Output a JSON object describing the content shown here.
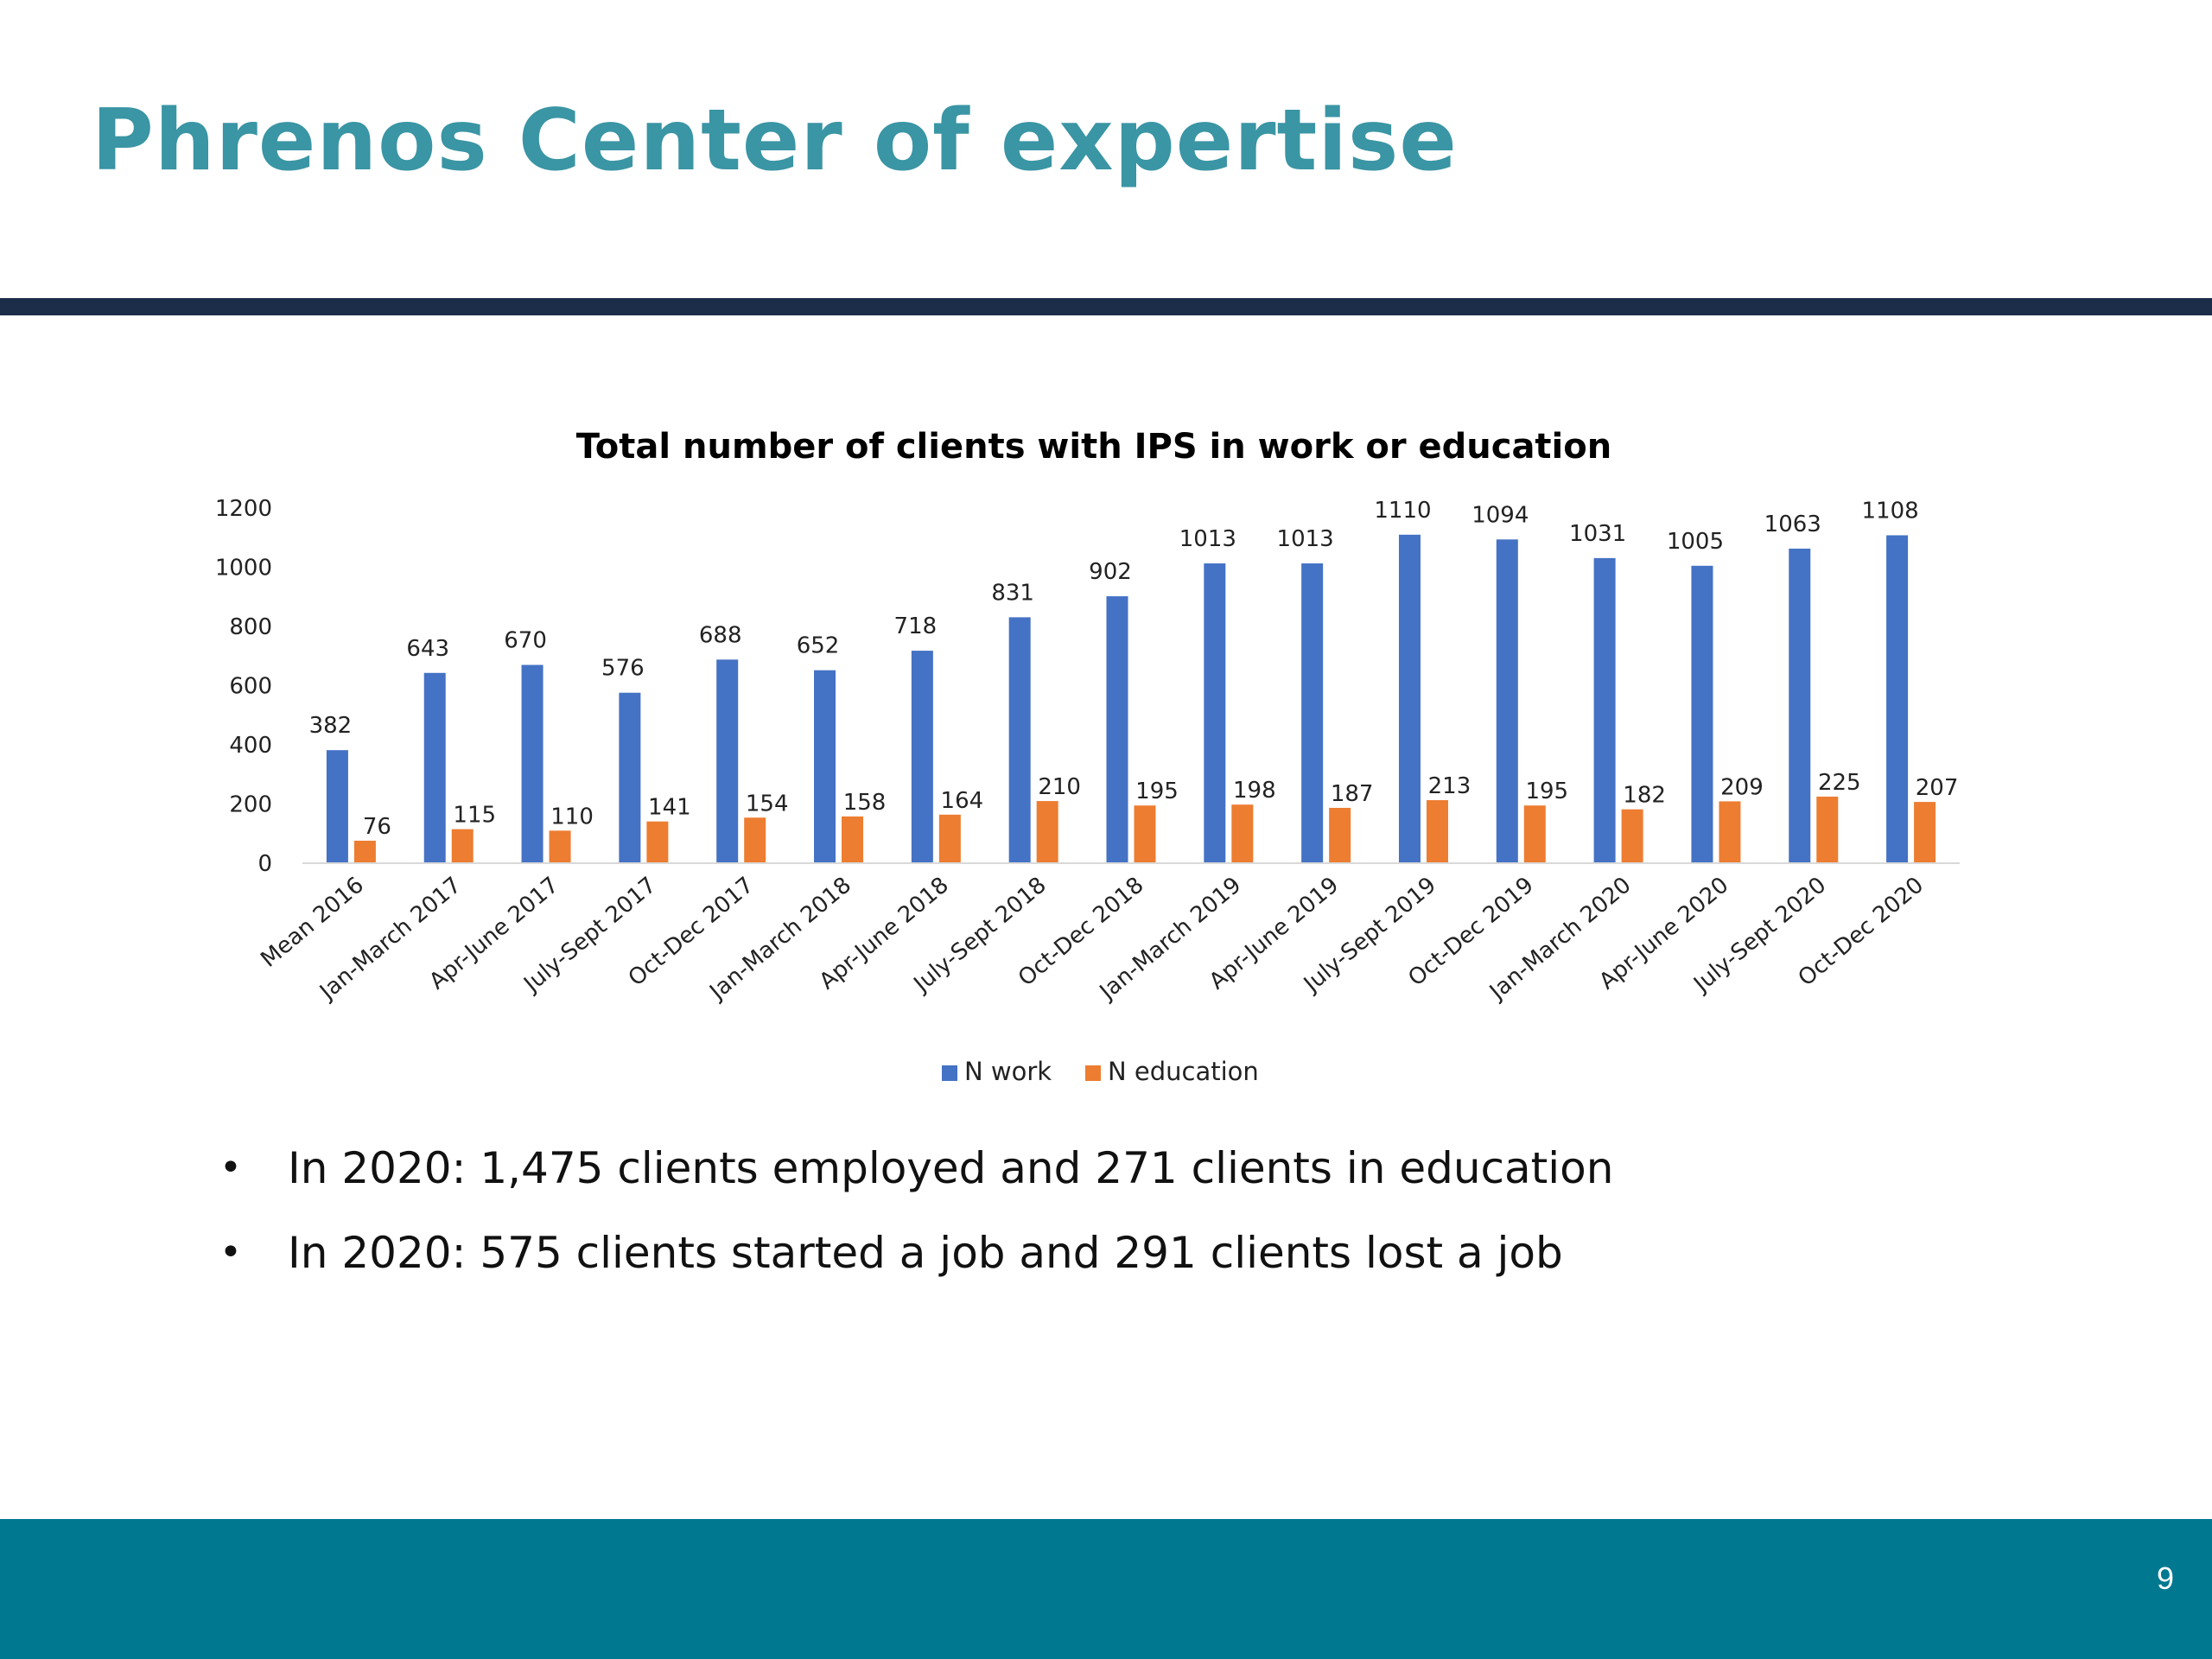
{
  "slide": {
    "title": "Phrenos Center of expertise",
    "page_number": "9"
  },
  "bullets": [
    "In 2020: 1,475 clients employed and 271 clients in education",
    "In 2020: 575 clients started a job and 291 clients lost a job"
  ],
  "colors": {
    "title": "#3a95a4",
    "rule": "#1c2d49",
    "footer": "#007890",
    "work": "#4472c4",
    "education": "#ed7d31"
  },
  "chart_data": {
    "type": "bar",
    "title": "Total number of clients with IPS in work or education",
    "xlabel": "",
    "ylabel": "",
    "ylim": [
      0,
      1200
    ],
    "yticks": [
      0,
      200,
      400,
      600,
      800,
      1000,
      1200
    ],
    "grid": false,
    "legend_position": "bottom",
    "categories": [
      "Mean 2016",
      "Jan-March 2017",
      "Apr-June 2017",
      "July-Sept 2017",
      "Oct-Dec 2017",
      "Jan-March 2018",
      "Apr-June 2018",
      "July-Sept 2018",
      "Oct-Dec 2018",
      "Jan-March 2019",
      "Apr-June 2019",
      "July-Sept 2019",
      "Oct-Dec 2019",
      "Jan-March 2020",
      "Apr-June 2020",
      "July-Sept 2020",
      "Oct-Dec 2020"
    ],
    "series": [
      {
        "name": "N work",
        "color": "#4472c4",
        "values": [
          382,
          643,
          670,
          576,
          688,
          652,
          718,
          831,
          902,
          1013,
          1013,
          1110,
          1094,
          1031,
          1005,
          1063,
          1108
        ]
      },
      {
        "name": "N education",
        "color": "#ed7d31",
        "values": [
          76,
          115,
          110,
          141,
          154,
          158,
          164,
          210,
          195,
          198,
          187,
          213,
          195,
          182,
          209,
          225,
          207
        ]
      }
    ]
  }
}
